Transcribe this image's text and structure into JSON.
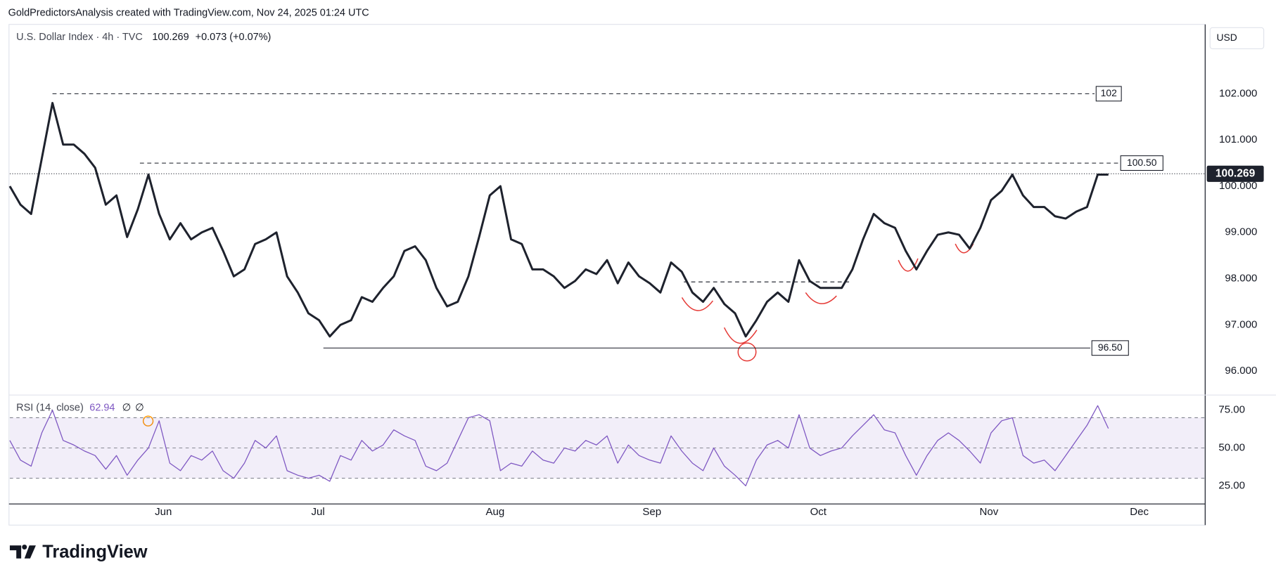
{
  "header": {
    "credit": "GoldPredictorsAnalysis created with TradingView.com, Nov 24, 2025 01:24 UTC",
    "symbol": "U.S. Dollar Index · 4h · TVC",
    "last": "100.269",
    "change": "+0.073 (+0.07%)",
    "currency": "USD",
    "brand": "TradingView"
  },
  "chart_data": [
    {
      "type": "line",
      "xlim": [
        0,
        112
      ],
      "xticks": [
        {
          "value": 14.4,
          "label": "Jun"
        },
        {
          "value": 28.9,
          "label": "Jul"
        },
        {
          "value": 45.5,
          "label": "Aug"
        },
        {
          "value": 60.2,
          "label": "Sep"
        },
        {
          "value": 75.8,
          "label": "Oct"
        },
        {
          "value": 91.8,
          "label": "Nov"
        },
        {
          "value": 105.9,
          "label": "Dec"
        }
      ],
      "ylim": [
        95.5,
        103.5
      ],
      "yticks": [
        {
          "value": 96,
          "label": "96.000"
        },
        {
          "value": 97,
          "label": "97.000"
        },
        {
          "value": 98,
          "label": "98.000"
        },
        {
          "value": 99,
          "label": "99.000"
        },
        {
          "value": 100,
          "label": "100.000"
        },
        {
          "value": 101,
          "label": "101.000"
        },
        {
          "value": 102,
          "label": "102.000"
        }
      ],
      "last_price": 100.269,
      "series": [
        {
          "name": "U.S. Dollar Index",
          "color": "#1e222d",
          "values": [
            100.0,
            99.6,
            99.4,
            100.6,
            101.8,
            100.9,
            100.9,
            100.7,
            100.4,
            99.6,
            99.8,
            98.9,
            99.5,
            100.25,
            99.4,
            98.85,
            99.2,
            98.85,
            99.0,
            99.1,
            98.6,
            98.05,
            98.2,
            98.75,
            98.85,
            99.0,
            98.05,
            97.7,
            97.25,
            97.1,
            96.75,
            97.0,
            97.1,
            97.6,
            97.5,
            97.8,
            98.05,
            98.6,
            98.7,
            98.4,
            97.8,
            97.4,
            97.5,
            98.05,
            98.9,
            99.8,
            100.0,
            98.85,
            98.75,
            98.2,
            98.2,
            98.05,
            97.8,
            97.95,
            98.2,
            98.1,
            98.4,
            97.9,
            98.35,
            98.05,
            97.9,
            97.7,
            98.35,
            98.15,
            97.7,
            97.5,
            97.8,
            97.45,
            97.25,
            96.75,
            97.1,
            97.5,
            97.7,
            97.5,
            98.4,
            97.95,
            97.8,
            97.8,
            97.8,
            98.2,
            98.85,
            99.4,
            99.2,
            99.1,
            98.6,
            98.2,
            98.6,
            98.95,
            99.0,
            98.95,
            98.65,
            99.1,
            99.7,
            99.9,
            100.25,
            99.8,
            99.55,
            99.55,
            99.35,
            99.3,
            99.45,
            99.55,
            100.25,
            100.25
          ]
        }
      ],
      "levels": [
        {
          "value": 102,
          "label": "102",
          "from": 4,
          "to": 101.7,
          "dashed": true
        },
        {
          "value": 100.5,
          "label": "100.50",
          "from": 12.2,
          "to": 104,
          "dashed": true
        },
        {
          "value": 96.5,
          "label": "96.50",
          "from": 29.4,
          "to": 101.3,
          "dashed": false
        },
        {
          "value": 97.93,
          "from": 63.2,
          "to": 78.9,
          "dashed": true
        }
      ]
    },
    {
      "type": "line",
      "title": "RSI (14, close)",
      "last_label": "62.94",
      "flags": [
        "∅",
        "∅"
      ],
      "ylim": [
        13,
        85
      ],
      "yticks": [
        {
          "value": 25,
          "label": "25.00"
        },
        {
          "value": 50,
          "label": "50.00"
        },
        {
          "value": 75,
          "label": "75.00"
        }
      ],
      "bands": [
        30,
        70
      ],
      "midline": 50,
      "series": [
        {
          "name": "RSI",
          "color": "#7e57c2",
          "values": [
            55,
            42,
            38,
            60,
            75,
            55,
            52,
            48,
            45,
            36,
            45,
            32,
            42,
            50,
            68,
            40,
            35,
            45,
            42,
            48,
            35,
            30,
            40,
            55,
            50,
            58,
            35,
            32,
            30,
            32,
            28,
            45,
            42,
            55,
            48,
            52,
            62,
            58,
            55,
            38,
            35,
            40,
            55,
            70,
            72,
            68,
            35,
            40,
            38,
            48,
            42,
            40,
            50,
            48,
            55,
            52,
            58,
            40,
            52,
            45,
            42,
            40,
            58,
            48,
            40,
            35,
            50,
            38,
            32,
            25,
            42,
            52,
            55,
            50,
            72,
            50,
            45,
            48,
            50,
            58,
            65,
            72,
            62,
            60,
            45,
            32,
            45,
            55,
            60,
            55,
            48,
            40,
            60,
            68,
            70,
            45,
            40,
            42,
            35,
            45,
            55,
            65,
            78,
            62.94
          ]
        }
      ]
    }
  ]
}
